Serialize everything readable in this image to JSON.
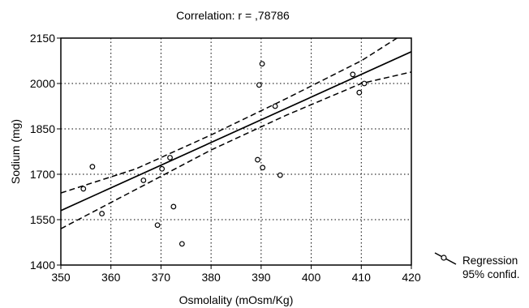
{
  "chart_data": {
    "type": "scatter",
    "title": "Correlation: r = ,78786",
    "xlabel": "Osmolality (mOsm/Kg)",
    "ylabel": "Sodium (mg)",
    "xlim": [
      350,
      420
    ],
    "ylim": [
      1400,
      2150
    ],
    "x_ticks": [
      "350",
      "360",
      "370",
      "380",
      "390",
      "400",
      "410",
      "420"
    ],
    "y_ticks": [
      "1400",
      "1550",
      "1700",
      "1850",
      "2000",
      "2150"
    ],
    "x_tick_values": [
      350,
      360,
      370,
      380,
      390,
      400,
      410,
      420
    ],
    "y_tick_values": [
      1400,
      1550,
      1700,
      1850,
      2000,
      2150
    ],
    "grid": true,
    "legend_position": "bottom-right",
    "legend": {
      "line1": "Regression",
      "line2": "95% confid."
    },
    "points": [
      {
        "x": 354.5,
        "y": 1652
      },
      {
        "x": 356.3,
        "y": 1725
      },
      {
        "x": 358.2,
        "y": 1570
      },
      {
        "x": 366.5,
        "y": 1680
      },
      {
        "x": 369.3,
        "y": 1532
      },
      {
        "x": 370.2,
        "y": 1718
      },
      {
        "x": 371.8,
        "y": 1755
      },
      {
        "x": 372.5,
        "y": 1593
      },
      {
        "x": 374.2,
        "y": 1470
      },
      {
        "x": 389.3,
        "y": 1748
      },
      {
        "x": 389.6,
        "y": 1995
      },
      {
        "x": 390.2,
        "y": 2065
      },
      {
        "x": 390.3,
        "y": 1722
      },
      {
        "x": 392.8,
        "y": 1925
      },
      {
        "x": 393.8,
        "y": 1697
      },
      {
        "x": 408.3,
        "y": 2030
      },
      {
        "x": 409.6,
        "y": 1970
      },
      {
        "x": 410.6,
        "y": 2000
      }
    ],
    "regression": {
      "x1": 350,
      "y1": 1580,
      "x2": 420,
      "y2": 2105
    },
    "conf_upper": [
      {
        "x": 350,
        "y": 1638
      },
      {
        "x": 365,
        "y": 1718
      },
      {
        "x": 380,
        "y": 1830
      },
      {
        "x": 395,
        "y": 1950
      },
      {
        "x": 410,
        "y": 2075
      },
      {
        "x": 420,
        "y": 2180
      }
    ],
    "conf_lower": [
      {
        "x": 350,
        "y": 1520
      },
      {
        "x": 365,
        "y": 1650
      },
      {
        "x": 380,
        "y": 1780
      },
      {
        "x": 395,
        "y": 1895
      },
      {
        "x": 410,
        "y": 2000
      },
      {
        "x": 420,
        "y": 2038
      }
    ]
  }
}
